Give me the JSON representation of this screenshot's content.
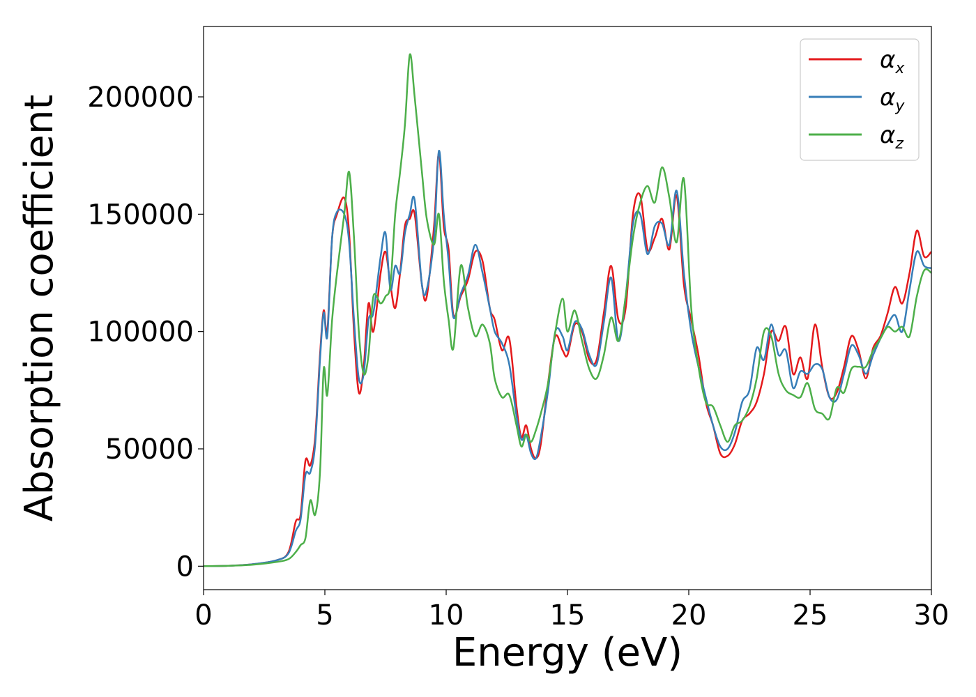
{
  "chart_data": {
    "type": "line",
    "xlabel": "Energy (eV)",
    "ylabel": "Absorption coefficient",
    "xlim": [
      0,
      30
    ],
    "ylim": [
      -10000,
      230000
    ],
    "xticks": [
      0,
      5,
      10,
      15,
      20,
      25,
      30
    ],
    "yticks": [
      0,
      50000,
      100000,
      150000,
      200000
    ],
    "grid": false,
    "legend_position": "top-right",
    "series": [
      {
        "name": "α_x",
        "symbol": "α",
        "subscript": "x",
        "color": "#e41a1c",
        "x": [
          0,
          1,
          2,
          3,
          3.5,
          3.8,
          4.0,
          4.2,
          4.4,
          4.6,
          4.8,
          4.95,
          5.1,
          5.3,
          5.5,
          5.8,
          6.0,
          6.2,
          6.4,
          6.6,
          6.8,
          7.0,
          7.3,
          7.5,
          7.7,
          7.9,
          8.1,
          8.3,
          8.5,
          8.7,
          9.0,
          9.2,
          9.5,
          9.7,
          9.9,
          10.1,
          10.3,
          10.6,
          10.9,
          11.2,
          11.5,
          11.8,
          12.0,
          12.3,
          12.6,
          12.9,
          13.1,
          13.3,
          13.5,
          13.7,
          13.9,
          14.2,
          14.5,
          14.8,
          15.0,
          15.3,
          15.6,
          15.9,
          16.2,
          16.5,
          16.8,
          17.1,
          17.4,
          17.7,
          18.0,
          18.3,
          18.6,
          18.9,
          19.2,
          19.5,
          19.8,
          20.1,
          20.4,
          20.7,
          21.0,
          21.3,
          21.6,
          21.9,
          22.2,
          22.5,
          22.8,
          23.1,
          23.4,
          23.7,
          24.0,
          24.3,
          24.6,
          24.9,
          25.2,
          25.5,
          25.8,
          26.1,
          26.4,
          26.7,
          27.0,
          27.3,
          27.6,
          27.9,
          28.2,
          28.5,
          28.8,
          29.1,
          29.4,
          29.7,
          30.0
        ],
        "y": [
          0,
          200,
          800,
          2500,
          6000,
          19000,
          22000,
          45000,
          43000,
          55000,
          90000,
          109000,
          100000,
          140000,
          150000,
          157000,
          142000,
          100000,
          74000,
          85000,
          112000,
          100000,
          125000,
          134000,
          120000,
          110000,
          125000,
          145000,
          148000,
          150000,
          120000,
          115000,
          145000,
          176000,
          145000,
          135000,
          107000,
          115000,
          122000,
          134000,
          130000,
          110000,
          105000,
          92000,
          97000,
          68000,
          55000,
          60000,
          50000,
          46000,
          52000,
          78000,
          98000,
          92000,
          90000,
          103000,
          100000,
          88000,
          88000,
          108000,
          128000,
          105000,
          110000,
          150000,
          158000,
          135000,
          140000,
          148000,
          135000,
          158000,
          120000,
          105000,
          90000,
          70000,
          60000,
          48000,
          47000,
          52000,
          62000,
          65000,
          70000,
          82000,
          100000,
          96000,
          102000,
          82000,
          89000,
          80000,
          103000,
          85000,
          72000,
          74000,
          85000,
          98000,
          92000,
          80000,
          93000,
          98000,
          108000,
          119000,
          112000,
          125000,
          143000,
          132000,
          134000
        ]
      },
      {
        "name": "α_y",
        "symbol": "α",
        "subscript": "y",
        "color": "#377eb8",
        "x": [
          0,
          1,
          2,
          3,
          3.5,
          3.8,
          4.0,
          4.2,
          4.4,
          4.6,
          4.8,
          4.95,
          5.1,
          5.3,
          5.5,
          5.8,
          6.0,
          6.2,
          6.4,
          6.6,
          6.8,
          7.0,
          7.3,
          7.5,
          7.7,
          7.9,
          8.1,
          8.3,
          8.5,
          8.7,
          9.0,
          9.2,
          9.5,
          9.7,
          9.9,
          10.1,
          10.3,
          10.6,
          10.9,
          11.2,
          11.5,
          11.8,
          12.0,
          12.3,
          12.6,
          12.9,
          13.1,
          13.3,
          13.5,
          13.7,
          13.9,
          14.2,
          14.5,
          14.8,
          15.0,
          15.3,
          15.6,
          15.9,
          16.2,
          16.5,
          16.8,
          17.1,
          17.4,
          17.7,
          18.0,
          18.3,
          18.6,
          18.9,
          19.2,
          19.5,
          19.8,
          20.1,
          20.4,
          20.7,
          21.0,
          21.3,
          21.6,
          21.9,
          22.2,
          22.5,
          22.8,
          23.1,
          23.4,
          23.7,
          24.0,
          24.3,
          24.6,
          24.9,
          25.2,
          25.5,
          25.8,
          26.1,
          26.4,
          26.7,
          27.0,
          27.3,
          27.6,
          27.9,
          28.2,
          28.5,
          28.8,
          29.1,
          29.4,
          29.7,
          30.0
        ],
        "y": [
          0,
          200,
          800,
          2500,
          5500,
          15000,
          20000,
          39000,
          40000,
          52000,
          88000,
          108000,
          98000,
          140000,
          151000,
          150000,
          138000,
          105000,
          80000,
          82000,
          105000,
          108000,
          132000,
          142000,
          118000,
          128000,
          125000,
          142000,
          150000,
          156000,
          120000,
          118000,
          140000,
          177000,
          150000,
          130000,
          106000,
          116000,
          124000,
          137000,
          125000,
          110000,
          100000,
          95000,
          86000,
          64000,
          54000,
          56000,
          48000,
          46000,
          55000,
          75000,
          100000,
          98000,
          92000,
          104000,
          101000,
          90000,
          86000,
          104000,
          123000,
          96000,
          115000,
          146000,
          150000,
          133000,
          145000,
          146000,
          137000,
          160000,
          125000,
          100000,
          85000,
          72000,
          60000,
          51000,
          50000,
          57000,
          70000,
          75000,
          93000,
          88000,
          103000,
          90000,
          92000,
          76000,
          83000,
          82000,
          86000,
          84000,
          72000,
          71000,
          82000,
          94000,
          90000,
          82000,
          90000,
          97000,
          103000,
          107000,
          100000,
          118000,
          134000,
          128000,
          127000
        ]
      },
      {
        "name": "α_z",
        "symbol": "α",
        "subscript": "z",
        "color": "#4daf4a",
        "x": [
          0,
          1,
          2,
          3,
          3.5,
          3.8,
          4.0,
          4.2,
          4.4,
          4.6,
          4.8,
          4.95,
          5.1,
          5.3,
          5.5,
          5.8,
          6.0,
          6.2,
          6.4,
          6.6,
          6.8,
          7.0,
          7.3,
          7.5,
          7.7,
          7.9,
          8.1,
          8.3,
          8.5,
          8.7,
          9.0,
          9.2,
          9.5,
          9.7,
          9.9,
          10.1,
          10.3,
          10.6,
          10.9,
          11.2,
          11.5,
          11.8,
          12.0,
          12.3,
          12.6,
          12.9,
          13.1,
          13.3,
          13.5,
          13.7,
          13.9,
          14.2,
          14.5,
          14.8,
          15.0,
          15.3,
          15.6,
          15.9,
          16.2,
          16.5,
          16.8,
          17.1,
          17.4,
          17.7,
          18.0,
          18.3,
          18.6,
          18.9,
          19.2,
          19.5,
          19.8,
          20.1,
          20.4,
          20.7,
          21.0,
          21.3,
          21.6,
          21.9,
          22.2,
          22.5,
          22.8,
          23.1,
          23.4,
          23.7,
          24.0,
          24.3,
          24.6,
          24.9,
          25.2,
          25.5,
          25.8,
          26.1,
          26.4,
          26.7,
          27.0,
          27.3,
          27.6,
          27.9,
          28.2,
          28.5,
          28.8,
          29.1,
          29.4,
          29.7,
          30.0
        ],
        "y": [
          0,
          150,
          600,
          1800,
          3000,
          6000,
          9000,
          12000,
          28000,
          22000,
          40000,
          84000,
          73000,
          105000,
          125000,
          150000,
          168000,
          140000,
          100000,
          82000,
          90000,
          115000,
          112000,
          115000,
          120000,
          150000,
          168000,
          188000,
          218000,
          200000,
          168000,
          148000,
          137000,
          150000,
          122000,
          105000,
          93000,
          128000,
          110000,
          98000,
          103000,
          95000,
          80000,
          72000,
          73000,
          60000,
          51000,
          56000,
          53000,
          58000,
          65000,
          78000,
          100000,
          114000,
          100000,
          109000,
          96000,
          84000,
          80000,
          90000,
          106000,
          96000,
          115000,
          140000,
          155000,
          162000,
          155000,
          170000,
          157000,
          138000,
          165000,
          110000,
          85000,
          70000,
          68000,
          60000,
          53000,
          60000,
          62000,
          68000,
          80000,
          100000,
          98000,
          82000,
          75000,
          73000,
          72000,
          78000,
          67000,
          65000,
          63000,
          76000,
          74000,
          84000,
          85000,
          85000,
          92000,
          97000,
          102000,
          100000,
          102000,
          98000,
          115000,
          126000,
          125000
        ]
      }
    ]
  }
}
